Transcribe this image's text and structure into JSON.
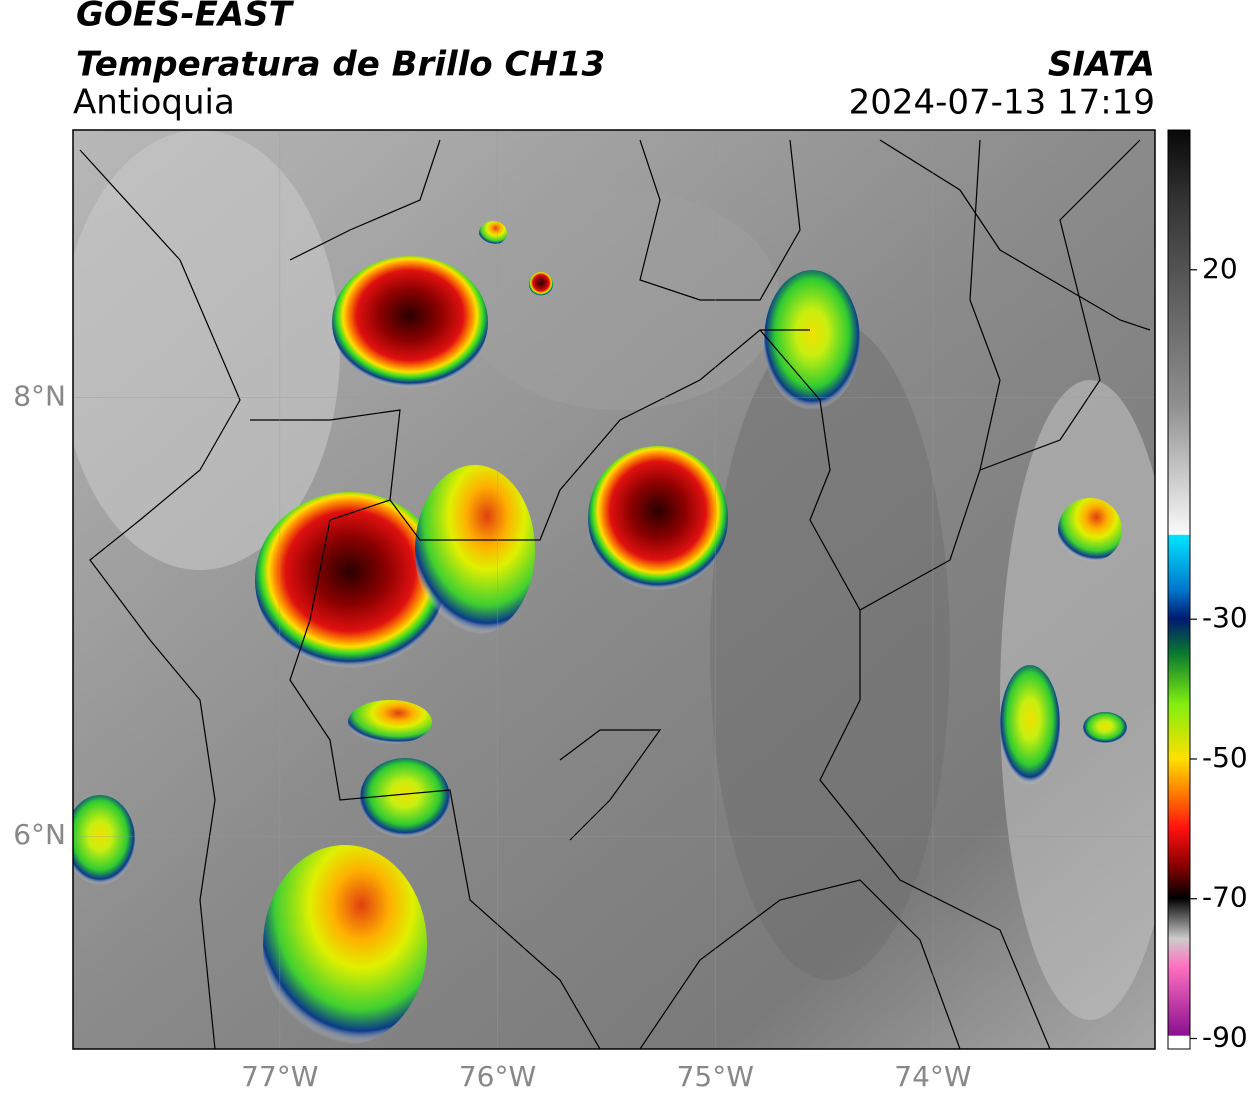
{
  "header": {
    "satellite": "GOES-EAST",
    "product": "Temperatura de Brillo CH13",
    "region": "Antioquia",
    "source": "SIATA",
    "datetime": "2024-07-13 17:19"
  },
  "map": {
    "xlim": [
      -77.95,
      -72.98
    ],
    "ylim": [
      5.03,
      9.22
    ],
    "xticks": [
      {
        "value": -77,
        "label": "77°W"
      },
      {
        "value": -76,
        "label": "76°W"
      },
      {
        "value": -75,
        "label": "75°W"
      },
      {
        "value": -74,
        "label": "74°W"
      }
    ],
    "yticks": [
      {
        "value": 8,
        "label": "8°N"
      },
      {
        "value": 6,
        "label": "6°N"
      }
    ],
    "grid": true
  },
  "colorbar": {
    "lim": [
      -91.5,
      40
    ],
    "ticks": [
      20,
      -30,
      -50,
      -70,
      -90
    ]
  }
}
